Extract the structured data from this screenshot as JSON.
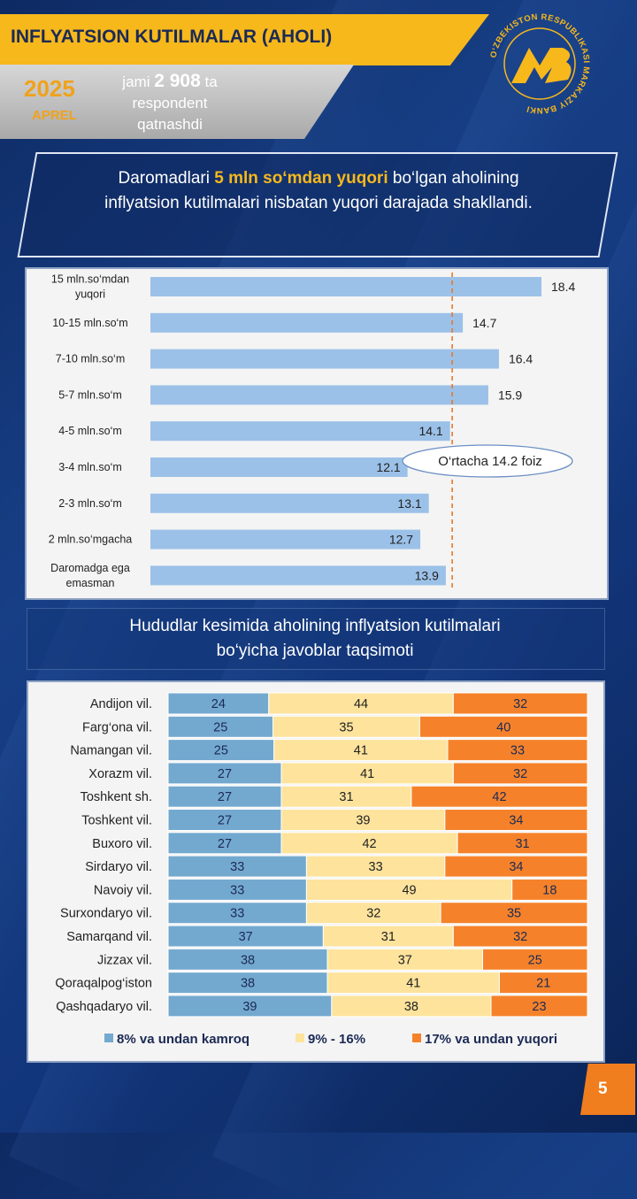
{
  "header": {
    "title": "INFLYATSION KUTILMALAR (AHOLI)",
    "year": "2025",
    "month": "APREL",
    "respondents_prefix": "jami",
    "respondents_count": "2 908",
    "respondents_suffix_1": "ta",
    "respondents_suffix_2": "respondent",
    "respondents_suffix_3": "qatnashdi"
  },
  "logo": {
    "ring_text": "O‘ZBEKISTON RESPUBLIKASI MARKAZIY BANKI"
  },
  "callout": {
    "part1": "Daromadlari ",
    "highlight": "5 mln so‘mdan yuqori",
    "part2": " bo‘lgan aholining inflyatsion kutilmalari nisbatan yuqori darajada shakllandi."
  },
  "section2": {
    "title_line1": "Hududlar kesimida aholining inflyatsion kutilmalari",
    "title_line2": "bo‘yicha javoblar taqsimoti"
  },
  "page": {
    "number": "5"
  },
  "colors": {
    "bar1": "#9cc1e8",
    "seg1": "#74a9cf",
    "seg2": "#fde39c",
    "seg3": "#f5822a",
    "accent": "#f7b81c"
  },
  "chart_data": [
    {
      "type": "bar",
      "orientation": "horizontal",
      "categories": [
        "15 mln.so‘mdan yuqori",
        "10-15 mln.so‘m",
        "7-10 mln.so‘m",
        "5-7 mln.so‘m",
        "4-5 mln.so‘m",
        "3-4 mln.so‘m",
        "2-3 mln.so‘m",
        "2 mln.so‘mgacha",
        "Daromadga ega emasman"
      ],
      "values": [
        18.4,
        14.7,
        16.4,
        15.9,
        14.1,
        12.1,
        13.1,
        12.7,
        13.9
      ],
      "reference_line": 14.2,
      "annotation": "O‘rtacha 14.2 foiz",
      "xlim": [
        0,
        20
      ]
    },
    {
      "type": "bar",
      "orientation": "horizontal",
      "stacked": "percent",
      "categories": [
        "Andijon vil.",
        "Farg‘ona vil.",
        "Namangan vil.",
        "Xorazm vil.",
        "Toshkent sh.",
        "Toshkent vil.",
        "Buxoro vil.",
        "Sirdaryo vil.",
        "Navoiy vil.",
        "Surxondaryo vil.",
        "Samarqand vil.",
        "Jizzax vil.",
        "Qoraqalpog‘iston",
        "Qashqadaryo vil."
      ],
      "series": [
        {
          "name": "8% va undan kamroq",
          "values": [
            24,
            25,
            25,
            27,
            27,
            27,
            27,
            33,
            33,
            33,
            37,
            38,
            38,
            39
          ]
        },
        {
          "name": "9% - 16%",
          "values": [
            44,
            35,
            41,
            41,
            31,
            39,
            42,
            33,
            49,
            32,
            31,
            37,
            41,
            38
          ]
        },
        {
          "name": "17% va undan yuqori",
          "values": [
            32,
            40,
            33,
            32,
            42,
            34,
            31,
            34,
            18,
            35,
            32,
            25,
            21,
            23
          ]
        }
      ],
      "legend": "bottom"
    }
  ]
}
